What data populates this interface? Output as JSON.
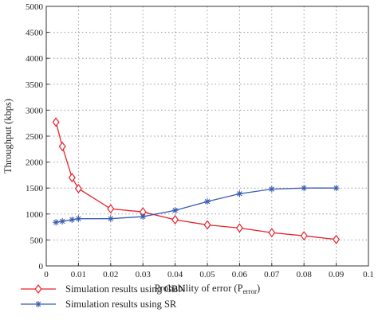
{
  "chart_data": {
    "type": "line",
    "title": "",
    "xlabel": "Probability of error (P",
    "xlabel_sub": "error",
    "xlabel_close": ")",
    "ylabel": "Throughput (kbps)",
    "xlim": [
      0,
      0.1
    ],
    "ylim": [
      0,
      5000
    ],
    "xticks": [
      0,
      0.01,
      0.02,
      0.03,
      0.04,
      0.05,
      0.06,
      0.07,
      0.08,
      0.09,
      0.1
    ],
    "xtick_labels": [
      "0",
      "0.01",
      "0.02",
      "0.03",
      "0.04",
      "0.05",
      "0.06",
      "0.07",
      "0.08",
      "0.09",
      "0.1"
    ],
    "yticks": [
      0,
      500,
      1000,
      1500,
      2000,
      2500,
      3000,
      3500,
      4000,
      4500,
      5000
    ],
    "ytick_labels": [
      "0",
      "500",
      "1000",
      "1500",
      "2000",
      "2500",
      "3000",
      "3500",
      "4000",
      "4500",
      "5000"
    ],
    "grid": true,
    "legend_position": "bottom",
    "series": [
      {
        "name": "Simulation results using GBN",
        "color": "#e8202a",
        "marker": "diamond",
        "x": [
          0.003,
          0.005,
          0.008,
          0.01,
          0.02,
          0.03,
          0.04,
          0.05,
          0.06,
          0.07,
          0.08,
          0.09
        ],
        "y": [
          2770,
          2300,
          1700,
          1490,
          1100,
          1040,
          890,
          790,
          730,
          640,
          580,
          510
        ]
      },
      {
        "name": "Simulation results using SR",
        "color": "#3a5cb0",
        "marker": "asterisk",
        "x": [
          0.003,
          0.005,
          0.008,
          0.01,
          0.02,
          0.03,
          0.04,
          0.05,
          0.06,
          0.07,
          0.08,
          0.09
        ],
        "y": [
          840,
          860,
          890,
          910,
          910,
          950,
          1070,
          1240,
          1390,
          1480,
          1500,
          1500
        ]
      }
    ]
  }
}
